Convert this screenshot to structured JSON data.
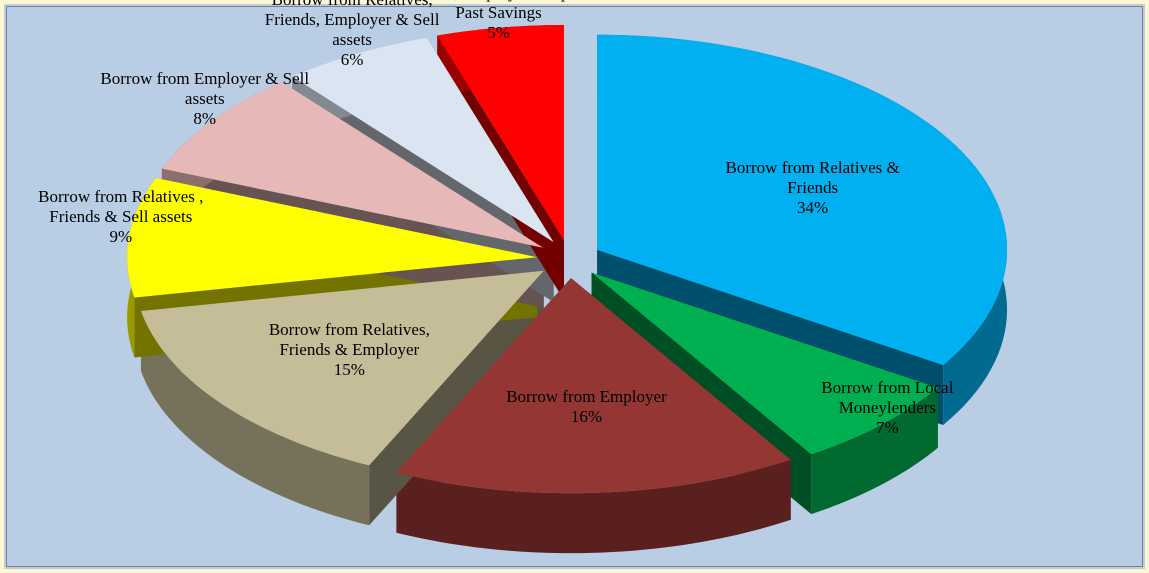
{
  "chart_data": {
    "type": "pie",
    "categories": [
      "Borrow from Relatives & Friends",
      "Borrow from Local Moneylenders",
      "Borrow from Employer",
      "Borrow from Relatives, Friends & Employer",
      "Borrow from Relatives , Friends & Sell assets",
      "Borrow from Employer & Sell assets",
      "Borrow from Relatives,  Friends, Employer & Sell assets",
      "Borrow from Relatives, Friends, Empolyer & Spend Past Savings"
    ],
    "values": [
      34,
      7,
      16,
      15,
      9,
      8,
      6,
      5
    ],
    "value_labels": [
      "34%",
      "7%",
      "16%",
      "15%",
      "9%",
      "8%",
      "6%",
      "5%"
    ],
    "colors": [
      "#00b0f0",
      "#00b050",
      "#943634",
      "#c4bd97",
      "#ffff00",
      "#e6b9b8",
      "#dbe5f1",
      "#ff0000"
    ]
  }
}
